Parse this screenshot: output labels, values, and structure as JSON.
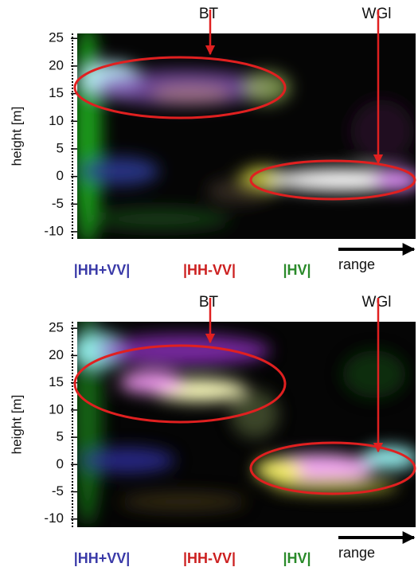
{
  "chart_data": [
    {
      "type": "image",
      "ylabel": "height [m]",
      "ylim": [
        -11.3,
        25.9
      ],
      "yticks": [
        25,
        20,
        15,
        10,
        5,
        0,
        -5,
        -10
      ],
      "annotations": [
        "BT",
        "WGl"
      ],
      "channels": [
        {
          "name": "|HH+VV|",
          "color": "#3a3aa8"
        },
        {
          "name": "|HH-VV|",
          "color": "#cc2020"
        },
        {
          "name": "|HV|",
          "color": "#2a8a2a"
        }
      ],
      "xlabel": "range"
    },
    {
      "type": "image",
      "ylabel": "height [m]",
      "ylim": [
        -11.5,
        26.2
      ],
      "yticks": [
        25,
        20,
        15,
        10,
        5,
        0,
        -5,
        -10
      ],
      "annotations": [
        "BT",
        "WGl"
      ],
      "channels": [
        {
          "name": "|HH+VV|",
          "color": "#3a3aa8"
        },
        {
          "name": "|HH-VV|",
          "color": "#cc2020"
        },
        {
          "name": "|HV|",
          "color": "#2a8a2a"
        }
      ],
      "xlabel": "range"
    }
  ]
}
